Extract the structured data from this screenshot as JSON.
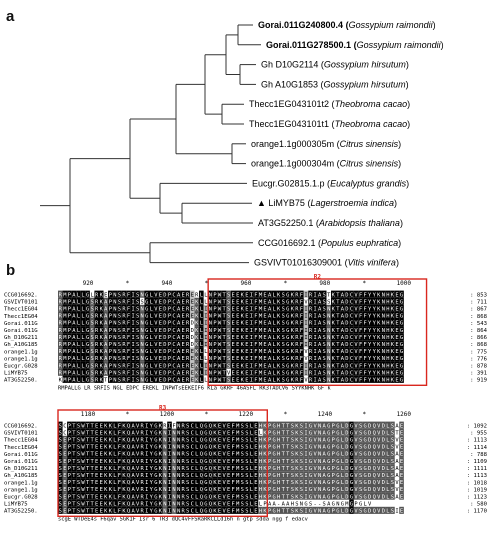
{
  "panel_a": {
    "label": "a",
    "leaves": [
      {
        "id": "Gorai.011G240800.4",
        "species": "Gossypium raimondii",
        "bold": true
      },
      {
        "id": "Gorai.011G278500.1",
        "species": "Gossypium raimondii",
        "bold": true
      },
      {
        "id": "Gh D10G2114",
        "species": "Gossypium hirsutum",
        "bold": false
      },
      {
        "id": "Gh A10G1853",
        "species": "Gossypium hirsutum",
        "bold": false
      },
      {
        "id": "Thecc1EG043101t2",
        "species": "Theobroma cacao",
        "bold": false
      },
      {
        "id": "Thecc1EG043101t1",
        "species": "Theobroma cacao",
        "bold": false
      },
      {
        "id": "orange1.1g000305m",
        "species": "Citrus sinensis",
        "bold": false
      },
      {
        "id": "orange1.1g000304m",
        "species": "Citrus sinensis",
        "bold": false
      },
      {
        "id": "Eucgr.G02815.1.p",
        "species": "Eucalyptus grandis",
        "bold": false
      },
      {
        "id": "LiMYB75",
        "species": "Lagerstroemia indica",
        "bold": false,
        "marker": "▲"
      },
      {
        "id": "AT3G52250.1",
        "species": "Arabidopsis thaliana",
        "bold": false
      },
      {
        "id": "CCG016692.1",
        "species": "Populus euphratica",
        "bold": false
      },
      {
        "id": "GSVIVT01016309001",
        "species": "Vitis vinifera",
        "bold": false
      }
    ]
  },
  "panel_b": {
    "label": "b",
    "block1": {
      "box_label": "R2",
      "ruler": [
        "920",
        "*",
        "940",
        "*",
        "960",
        "*",
        "980",
        "*",
        "1000"
      ],
      "rows": [
        {
          "name": "CCG016692.",
          "seq": "RMPALLGLRKEPNSRFISNGLVEDPCAERERLLNPWTSEEKEIFMEALKSGKRFIRIASTKTADCVFFYYKNHKEG",
          "end": ": 853"
        },
        {
          "name": "GSVIVT0101",
          "seq": "RMPALLGSRKAPNSRFISSGLVEDPCAEREKLLNPWTSEEKEIFMEALKSGKRFVRIASSKTADCVFFYYKNHKEG",
          "end": ": 711"
        },
        {
          "name": "Thecc1EG04",
          "seq": "RMPALLGSRKAPNSRFISNGLVEDPCAEREKLINPWTSEEKEIFMEALKSGKRFIRIASNKTADCVFFYYKNHKEG",
          "end": ": 867"
        },
        {
          "name": "Thecc1EG04",
          "seq": "RMPALLGSRKAPNSRFISNGLVEDPCAEREKLINPWTSEEKEIFMEALKSGKRFIRIASNKTADCVFFYYKNHKEG",
          "end": ": 868"
        },
        {
          "name": "Gorai.011G",
          "seq": "RMPALLGSRKAPNSRFISNGLVEDPCAERDKLINPWTSEEKEIFMEALKSGKRFIRIASNKTADCVFFYYKNHKEG",
          "end": ": 543"
        },
        {
          "name": "Gorai.011G",
          "seq": "RMPALLGSRKAPNSRFISNGLVEDPCAERDKLINPWTSEEKEIFMEALKSGKRFIRIASNKTADCVFFYYKNHKEG",
          "end": ": 864"
        },
        {
          "name": "Gh_D10G211",
          "seq": "RMPALLGSRKAPNSRFISNGLVEDPCAERDKLINPWTSEEKEIFMEALKSGKRFIRIASNKTADCVFFYYKNHKEG",
          "end": ": 866"
        },
        {
          "name": "Gh_A10G185",
          "seq": "RMPALLGSRKAPNSRFISNGLVEDPCAERDKLINPWTSEEKEIFMEALKSGKRFIRIASNKTADCVFFYYKNHKEG",
          "end": ": 868"
        },
        {
          "name": "orange1.1g",
          "seq": "RMPALLGSRKAPNSRFISNGLVEDPCAEREKLLNPWTSEEKEIFMEALKSGKRFVRIASNKTADCVFFYYKNHKEG",
          "end": ": 775"
        },
        {
          "name": "orange1.1g",
          "seq": "RMPALLGSRKAPNSRFISNGLVEDPCAEREKLLNPWTSEEKEIFMEALKSGKRFVRIASNKTADCVFFYYKNHKEG",
          "end": ": 776"
        },
        {
          "name": "Eucgr.G028",
          "seq": "RMPALLGSRKAPNSRFISNGLVEDPCAEREKLINPWTSEEKEIFMEALKSGKRFIRIASNKTADCVFFYYKNHKEG",
          "end": ": 878"
        },
        {
          "name": "LiMYB75",
          "seq": "RMPALLGSRKAPNSRFISNGLVEDPCAEREKLINPWTVEEKEIFMEALKSGKRFIRIASNKTADCVFFYYKNHKEG",
          "end": ": 391"
        },
        {
          "name": "AT3G52250.",
          "seq": "KMPALLGSRKTPNSRFISNGLVEDPCAEREKLLNPWTSEEKEIFMEALKSGKRFVRIASNKTADCVFFYYKNHKEG",
          "end": ": 919"
        }
      ],
      "consensus": "RMPALLG LR    SRFIS NGL EDPC EREKL INPWTsEEKEIF6 KLa GKRF 46ASFL RK3TADCV6 SYYKNHK  GF   k"
    },
    "block2": {
      "box_label": "R3",
      "ruler": [
        "1180",
        "*",
        "1200",
        "*",
        "1220",
        "*",
        "1240",
        "*",
        "1260"
      ],
      "rows": [
        {
          "name": "CCG016692.",
          "seq": "SCPTSWTTEEKKLFKQAVRIYGKRIFNRSCLQGQKEVEFMSSLEHKPGHTTSKSIGVNAGPGLDGVSGDQVDLSAE",
          "end": ": 1092"
        },
        {
          "name": "GSVIVT0101",
          "seq": "SCPTSWTTEEKKLFKQAVRIYGKNINNRSCLQGQKEVEFMSSLELKPGHTTSKSIGVNAGPGLDGVSGDQVDLSTE",
          "end": ": 955"
        },
        {
          "name": "Thecc1EG04",
          "seq": "SEPTSWTTEEKKLFKQAVRIYGKNINNRSCLQGQKEVEFMSSLEHKPGHTTSKSIGVNAGPGLDGVSGDQVDLSVE",
          "end": ": 1113"
        },
        {
          "name": "Thecc1EG04",
          "seq": "SEPTSWTTEEKKLFKQAVRIYGKNINNRSCLQGQKEVEFMSSLEHKPGHTTSKSIGVNAGPGLDGVSGDQVDLSVE",
          "end": ": 1114"
        },
        {
          "name": "Gorai.011G",
          "seq": "SEPTSWTTEEKKLFKQAVRIYGKNINNRSCLQGQKEVEFMSSLEHKPGHTTSKSIGVNAGPGLDGVSGDQVDLSAE",
          "end": ": 788"
        },
        {
          "name": "Gorai.011G",
          "seq": "SEPTSWTTEEKKLFKQAVRIYGKNINNRSCLQGQKEVEFMSSLEHKPGHTTSKSIGVNAGPGLDGVSGDQVDLSAE",
          "end": ": 1109"
        },
        {
          "name": "Gh_D10G211",
          "seq": "SEPTSWTTEEKKLFKQAVRIYGKNINNRSCLQGQKEVEFMSSLEHKPGHTTSKSIGVNAGPGLDGVSGDQVDLSAE",
          "end": ": 1111"
        },
        {
          "name": "Gh_A10G185",
          "seq": "SEPTSWTTEEKKLFKQAVRIYGKNINNRSCLQGQKEVEFMSSLEHKPGHTTSKSIGVNAGPGLDGVSGDQVDLSAE",
          "end": ": 1113"
        },
        {
          "name": "orange1.1g",
          "seq": "SEPTSWTTEEKKLFKQAVRIYGKNINNRSCLQGQKEVEFMSSLEHKPGHTTSKSIGVNAGPGLDGVSGDQVDLSVE",
          "end": ": 1018"
        },
        {
          "name": "orange1.1g",
          "seq": "SEPTSWTTEEKKLFKQAVRIYGKNINNRSCLQGQKEVEFMSSLEHKPGHTTSKSIGVNAGPGLDGVSGDQVDLSVE",
          "end": ": 1019"
        },
        {
          "name": "Eucgr.G028",
          "seq": "SEPTSWTTEEKKLFKQAVRIYGKNINNRSCLQGQKEVEFMSSLEHKPGHTTSKSIGVNAGPGLDGVSGDQVDLSAE",
          "end": ": 1123"
        },
        {
          "name": "LiMYB75",
          "seq": "SEPTSWTTEEKKLFKQAVRIYGKNINNRSCLQGQKEVEFMSSLELPAA-AAHSNGS--SAGNGMGPGLV",
          "end": ": 580"
        },
        {
          "name": "AT3G52250.",
          "seq": "SEPTSWTTEEKKLFKQAVRIYGKNINNRSCLQGQKEVEFMSSLEHKPGHTTSKSIGVNAGPGLDGVSGDQVDLSIE",
          "end": ": 1170"
        }
      ],
      "consensus": "scgE   WTDeE4s F6qav 5GK1F  Isr 6 TR3 dQC4vFFSRaRKCLLd16h   n gtp sdda  ngg  f edacv"
    }
  }
}
